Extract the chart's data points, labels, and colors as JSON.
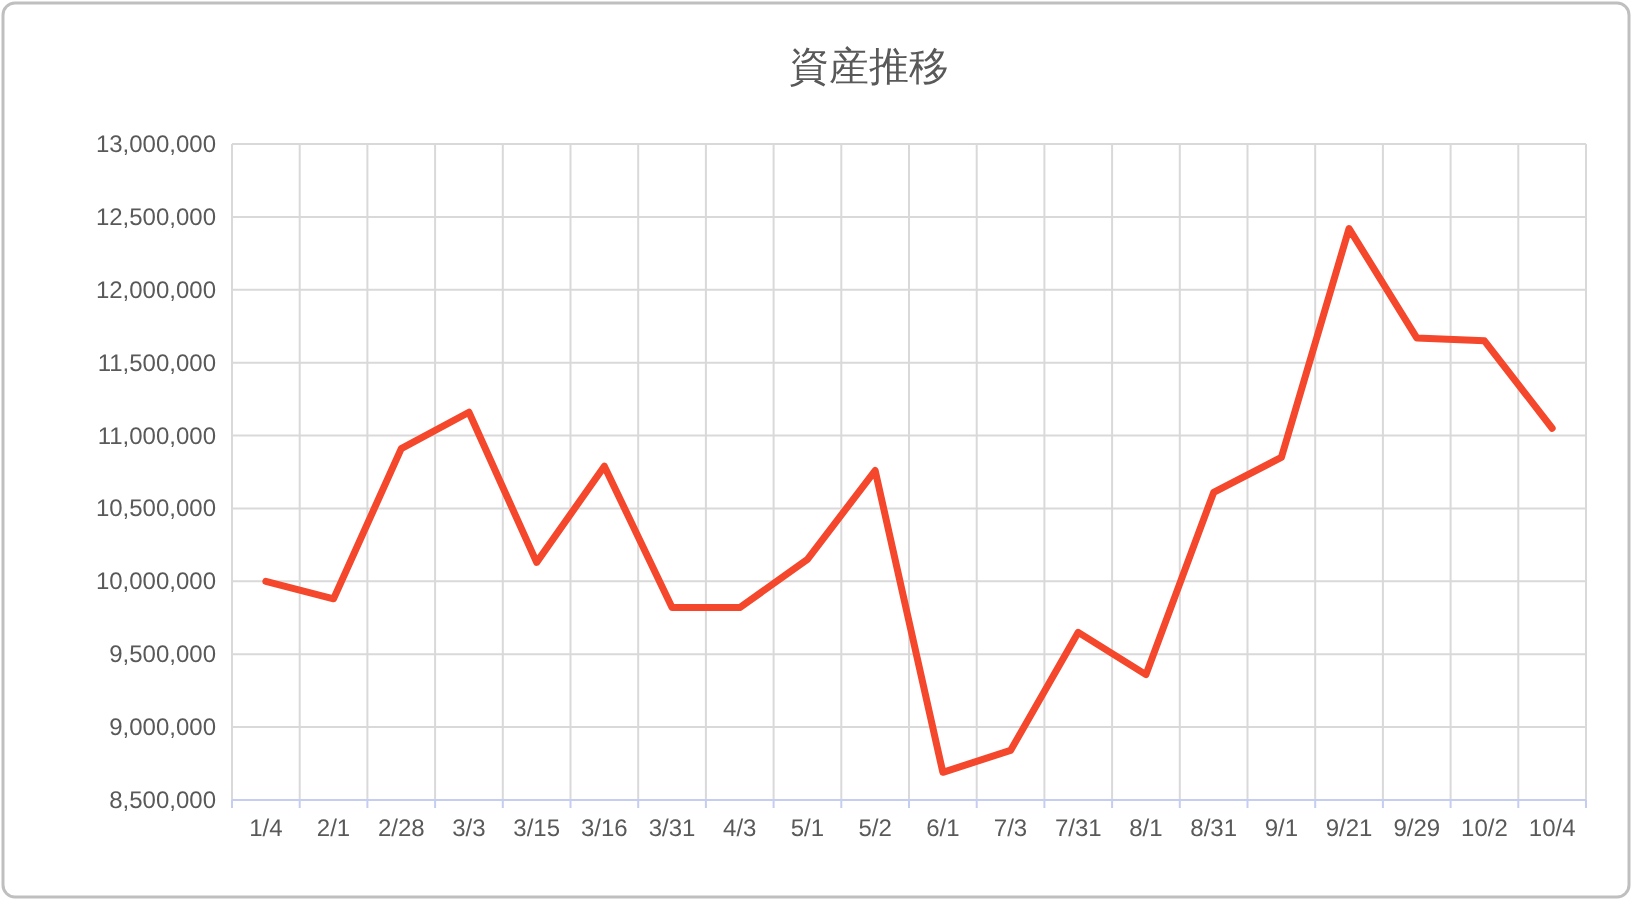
{
  "chart_data": {
    "type": "line",
    "title": "資産推移",
    "categories": [
      "1/4",
      "2/1",
      "2/28",
      "3/3",
      "3/15",
      "3/16",
      "3/31",
      "4/3",
      "5/1",
      "5/2",
      "6/1",
      "7/3",
      "7/31",
      "8/1",
      "8/31",
      "9/1",
      "9/21",
      "9/29",
      "10/2",
      "10/4"
    ],
    "series": [
      {
        "color": "#f4472b",
        "values": [
          10000000,
          9880000,
          10910000,
          11160000,
          10130000,
          10790000,
          9820000,
          9820000,
          10150000,
          10760000,
          8690000,
          8840000,
          9650000,
          9360000,
          10610000,
          10850000,
          12420000,
          11670000,
          11650000,
          11050000
        ]
      }
    ],
    "ylim": [
      8500000,
      13000000
    ],
    "yticks": [
      {
        "value": 8500000,
        "label": "8,500,000"
      },
      {
        "value": 9000000,
        "label": "9,000,000"
      },
      {
        "value": 9500000,
        "label": "9,500,000"
      },
      {
        "value": 10000000,
        "label": "10,000,000"
      },
      {
        "value": 10500000,
        "label": "10,500,000"
      },
      {
        "value": 11000000,
        "label": "11,000,000"
      },
      {
        "value": 11500000,
        "label": "11,500,000"
      },
      {
        "value": 12000000,
        "label": "12,000,000"
      },
      {
        "value": 12500000,
        "label": "12,500,000"
      },
      {
        "value": 13000000,
        "label": "13,000,000"
      }
    ],
    "grid": true,
    "line_style": "solid"
  }
}
